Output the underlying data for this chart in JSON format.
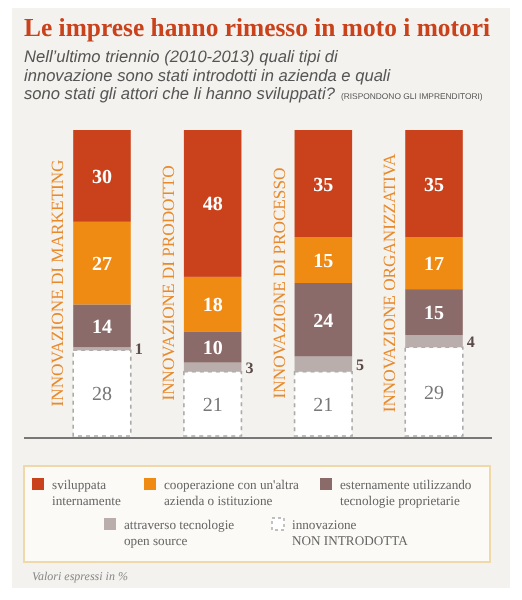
{
  "chart_data": {
    "type": "bar",
    "stacked": true,
    "data_labels": true,
    "legend": "bottom",
    "title": "Le imprese hanno rimesso in moto i motori",
    "subtitle": "Nell’ultimo triennio (2010-2013) quali tipi di innovazione sono stati introdotti in azienda e quali sono stati gli attori che li hanno sviluppati?",
    "annotations": [
      "(RISPONDONO GLI IMPRENDITORI)",
      "Valori espressi in %"
    ],
    "categories": [
      "INNOVAZIONE DI MARKETING",
      "INNOVAZIONE DI PRODOTTO",
      "INNOVAZIONE DI PROCESSO",
      "INNOVAZIONE ORGANIZZATIVA"
    ],
    "series": [
      {
        "name": "innovazione NON INTRODOTTA",
        "color": "#ffffff",
        "values": [
          28,
          21,
          21,
          29
        ]
      },
      {
        "name": "attraverso tecnologie open source",
        "color": "#b9aeac",
        "values": [
          1,
          3,
          5,
          4
        ]
      },
      {
        "name": "esternamente utilizzando tecnologie proprietarie",
        "color": "#8b6b69",
        "values": [
          14,
          10,
          24,
          15
        ]
      },
      {
        "name": "cooperazione con un'altra azienda o istituzione",
        "color": "#ef8a12",
        "values": [
          27,
          18,
          15,
          17
        ]
      },
      {
        "name": "sviluppata internamente",
        "color": "#c9421b",
        "values": [
          30,
          48,
          35,
          35
        ]
      }
    ]
  }
}
